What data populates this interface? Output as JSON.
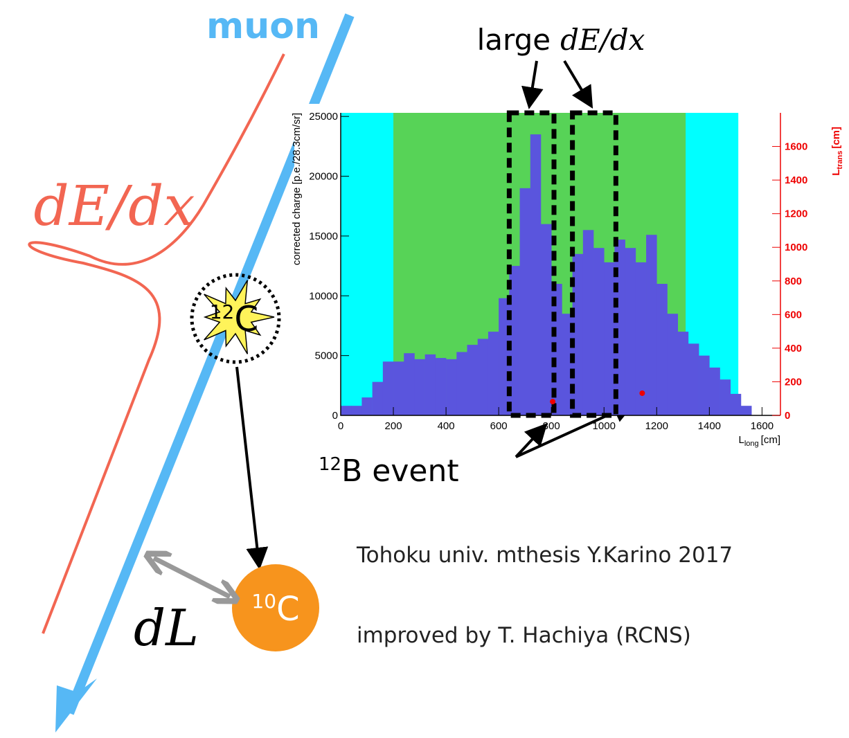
{
  "chart_data": {
    "type": "histogram",
    "bins": [
      0,
      40,
      80,
      120,
      160,
      200,
      240,
      280,
      320,
      360,
      400,
      440,
      480,
      520,
      560,
      600,
      640,
      680,
      720,
      760,
      800,
      840,
      880,
      920,
      960,
      1000,
      1040,
      1080,
      1120,
      1160,
      1200,
      1240,
      1280,
      1320,
      1360,
      1400,
      1440,
      1480,
      1520,
      1560
    ],
    "values": [
      800,
      800,
      1500,
      2800,
      4500,
      4500,
      5200,
      4700,
      5100,
      4800,
      4700,
      5300,
      5900,
      6400,
      7000,
      9800,
      12500,
      19000,
      23500,
      16000,
      11000,
      8500,
      13500,
      15500,
      14000,
      12800,
      14700,
      14000,
      12800,
      15100,
      11000,
      8500,
      7000,
      6000,
      5000,
      4000,
      3000,
      1800,
      800
    ],
    "color": "#5a55dd",
    "xlim": [
      0,
      1670
    ],
    "ylim": [
      0,
      25300
    ],
    "y2lim": [
      0,
      1800
    ],
    "xticks": [
      0,
      200,
      400,
      600,
      800,
      1000,
      1200,
      1400,
      1600
    ],
    "yticks": [
      0,
      5000,
      10000,
      15000,
      20000,
      25000
    ],
    "y2ticks": [
      0,
      200,
      400,
      600,
      800,
      1000,
      1200,
      1400,
      1600
    ],
    "y_label": "corrected charge [p.e./28.3cm/sr]",
    "x_label": {
      "symbol": "L",
      "subscript": "long",
      "unit": "[cm]"
    },
    "y2_label": {
      "symbol": "L",
      "subscript": "trans",
      "unit": "[cm]"
    },
    "y2_color": "#ee0000",
    "regions": [
      {
        "x": [
          0,
          1510
        ],
        "color": "#00ffff"
      },
      {
        "x": [
          200,
          1310
        ],
        "color": "#57d357"
      }
    ],
    "boxes": [
      {
        "x": [
          640,
          810
        ]
      },
      {
        "x": [
          880,
          1045
        ]
      }
    ],
    "scatter": {
      "x": [
        805,
        1145
      ],
      "y": [
        82,
        132
      ],
      "color": "#ee0000",
      "axis": "y2"
    }
  },
  "diagram": {
    "muon": "muon",
    "dedx": "dE/dx",
    "large": "large",
    "large_dedx": "dE/dx",
    "c12": {
      "mass": "12",
      "element": "C"
    },
    "c10": {
      "mass": "10",
      "element": "C"
    },
    "b12_event": {
      "mass": "12",
      "text": "B event"
    },
    "dl": "dL",
    "credit": "Tohoku univ. mthesis Y.Karino 2017",
    "improved": "improved by T. Hachiya (RCNS)"
  }
}
